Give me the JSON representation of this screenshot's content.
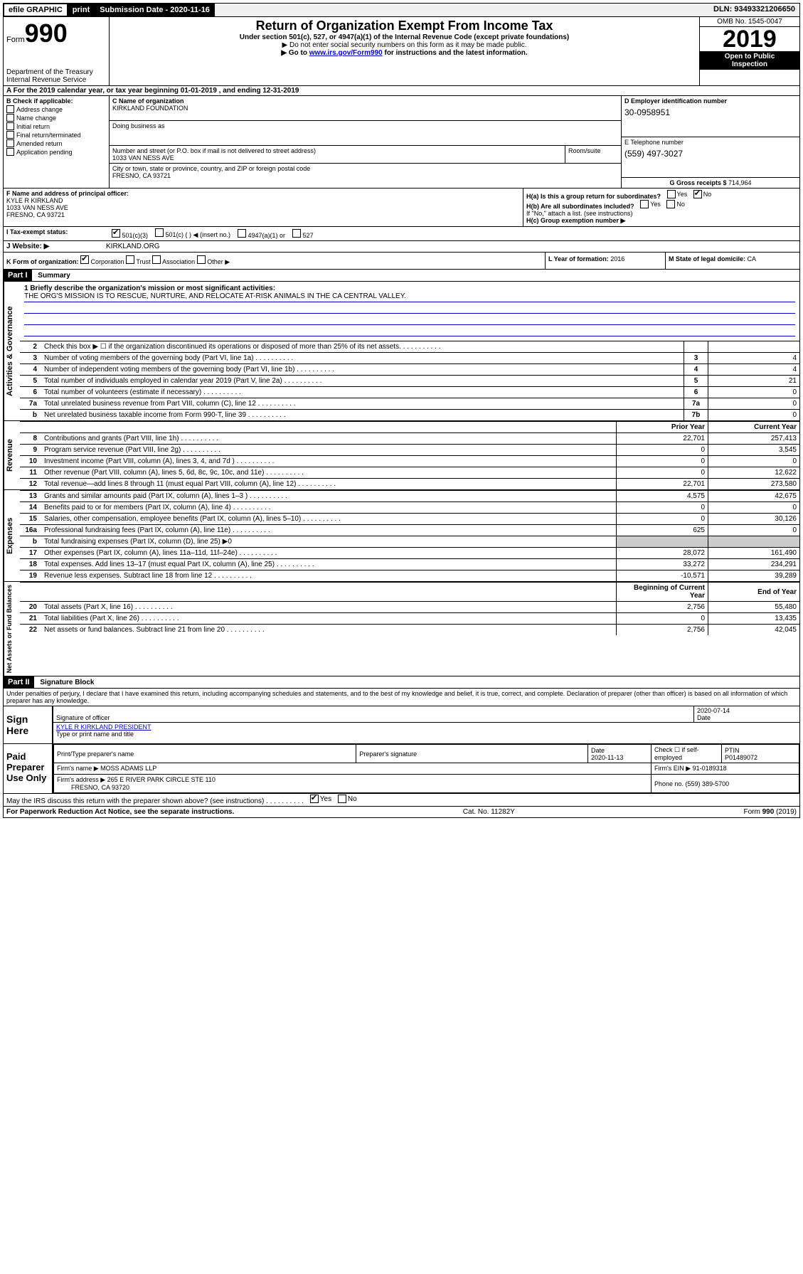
{
  "topbar": {
    "efile": "efile GRAPHIC",
    "print": "print",
    "subdate_label": "Submission Date - 2020-11-16",
    "dln": "DLN: 93493321206650"
  },
  "header": {
    "form_prefix": "Form",
    "form_number": "990",
    "dept": "Department of the Treasury",
    "irs": "Internal Revenue Service",
    "title": "Return of Organization Exempt From Income Tax",
    "sub1": "Under section 501(c), 527, or 4947(a)(1) of the Internal Revenue Code (except private foundations)",
    "sub2": "▶ Do not enter social security numbers on this form as it may be made public.",
    "sub3_prefix": "▶ Go to ",
    "sub3_link": "www.irs.gov/Form990",
    "sub3_suffix": " for instructions and the latest information.",
    "omb": "OMB No. 1545-0047",
    "year": "2019",
    "open": "Open to Public",
    "inspection": "Inspection"
  },
  "period": {
    "label_a": "A For the 2019 calendar year, or tax year beginning ",
    "start": "01-01-2019",
    "mid": " , and ending ",
    "end": "12-31-2019"
  },
  "checks": {
    "title": "B Check if applicable:",
    "addr": "Address change",
    "name": "Name change",
    "initial": "Initial return",
    "final": "Final return/terminated",
    "amended": "Amended return",
    "app": "Application pending"
  },
  "org": {
    "c_label": "C Name of organization",
    "c_val": "KIRKLAND FOUNDATION",
    "dba": "Doing business as",
    "addr_label": "Number and street (or P.O. box if mail is not delivered to street address)",
    "addr_val": "1033 VAN NESS AVE",
    "room": "Room/suite",
    "city_label": "City or town, state or province, country, and ZIP or foreign postal code",
    "city_val": "FRESNO, CA  93721"
  },
  "right": {
    "d_label": "D Employer identification number",
    "d_val": "30-0958951",
    "e_label": "E Telephone number",
    "e_val": "(559) 497-3027",
    "g_label": "G Gross receipts $ ",
    "g_val": "714,964"
  },
  "fbox": {
    "label": "F  Name and address of principal officer:",
    "name": "KYLE R KIRKLAND",
    "addr": "1033 VAN NESS AVE",
    "city": "FRESNO, CA  93721"
  },
  "hbox": {
    "h_a": "H(a)  Is this a group return for subordinates?",
    "h_b": "H(b)  Are all subordinates included?",
    "h_note": "If \"No,\" attach a list. (see instructions)",
    "h_c": "H(c)  Group exemption number ▶",
    "yes": "Yes",
    "no": "No"
  },
  "tax": {
    "label": "I   Tax-exempt status:",
    "s1": "501(c)(3)",
    "s2": "501(c) (  ) ◀ (insert no.)",
    "s3": "4947(a)(1) or",
    "s4": "527"
  },
  "web": {
    "label": "J   Website: ▶",
    "val": "KIRKLAND.ORG"
  },
  "k": {
    "label": "K Form of organization:",
    "corp": "Corporation",
    "trust": "Trust",
    "assoc": "Association",
    "other": "Other ▶",
    "l_label": "L Year of formation: ",
    "l_val": "2016",
    "m_label": "M State of legal domicile: ",
    "m_val": "CA"
  },
  "part1": {
    "hdr": "Part I",
    "title": "Summary"
  },
  "mission": {
    "line1_label": "1  Briefly describe the organization's mission or most significant activities:",
    "line1_val": "THE ORG'S MISSION IS TO RESCUE, NURTURE, AND RELOCATE AT-RISK ANIMALS IN THE CA CENTRAL VALLEY."
  },
  "gov_rows": [
    {
      "n": "2",
      "desc": "Check this box ▶ ☐  if the organization discontinued its operations or disposed of more than 25% of its net assets.",
      "num": "",
      "val": ""
    },
    {
      "n": "3",
      "desc": "Number of voting members of the governing body (Part VI, line 1a)",
      "num": "3",
      "val": "4"
    },
    {
      "n": "4",
      "desc": "Number of independent voting members of the governing body (Part VI, line 1b)",
      "num": "4",
      "val": "4"
    },
    {
      "n": "5",
      "desc": "Total number of individuals employed in calendar year 2019 (Part V, line 2a)",
      "num": "5",
      "val": "21"
    },
    {
      "n": "6",
      "desc": "Total number of volunteers (estimate if necessary)",
      "num": "6",
      "val": "0"
    },
    {
      "n": "7a",
      "desc": "Total unrelated business revenue from Part VIII, column (C), line 12",
      "num": "7a",
      "val": "0"
    },
    {
      "n": "b",
      "desc": "Net unrelated business taxable income from Form 990-T, line 39",
      "num": "7b",
      "val": "0"
    }
  ],
  "rev_header": {
    "prior": "Prior Year",
    "current": "Current Year"
  },
  "rev_rows": [
    {
      "n": "8",
      "desc": "Contributions and grants (Part VIII, line 1h)",
      "p": "22,701",
      "c": "257,413"
    },
    {
      "n": "9",
      "desc": "Program service revenue (Part VIII, line 2g)",
      "p": "0",
      "c": "3,545"
    },
    {
      "n": "10",
      "desc": "Investment income (Part VIII, column (A), lines 3, 4, and 7d )",
      "p": "0",
      "c": "0"
    },
    {
      "n": "11",
      "desc": "Other revenue (Part VIII, column (A), lines 5, 6d, 8c, 9c, 10c, and 11e)",
      "p": "0",
      "c": "12,622"
    },
    {
      "n": "12",
      "desc": "Total revenue—add lines 8 through 11 (must equal Part VIII, column (A), line 12)",
      "p": "22,701",
      "c": "273,580"
    }
  ],
  "exp_rows": [
    {
      "n": "13",
      "desc": "Grants and similar amounts paid (Part IX, column (A), lines 1–3 )",
      "p": "4,575",
      "c": "42,675"
    },
    {
      "n": "14",
      "desc": "Benefits paid to or for members (Part IX, column (A), line 4)",
      "p": "0",
      "c": "0"
    },
    {
      "n": "15",
      "desc": "Salaries, other compensation, employee benefits (Part IX, column (A), lines 5–10)",
      "p": "0",
      "c": "30,126"
    },
    {
      "n": "16a",
      "desc": "Professional fundraising fees (Part IX, column (A), line 11e)",
      "p": "625",
      "c": "0"
    },
    {
      "n": "b",
      "desc": "Total fundraising expenses (Part IX, column (D), line 25) ▶0",
      "p": "",
      "c": ""
    },
    {
      "n": "17",
      "desc": "Other expenses (Part IX, column (A), lines 11a–11d, 11f–24e)",
      "p": "28,072",
      "c": "161,490"
    },
    {
      "n": "18",
      "desc": "Total expenses. Add lines 13–17 (must equal Part IX, column (A), line 25)",
      "p": "33,272",
      "c": "234,291"
    },
    {
      "n": "19",
      "desc": "Revenue less expenses. Subtract line 18 from line 12",
      "p": "-10,571",
      "c": "39,289"
    }
  ],
  "net_header": {
    "begin": "Beginning of Current Year",
    "end": "End of Year"
  },
  "net_rows": [
    {
      "n": "20",
      "desc": "Total assets (Part X, line 16)",
      "p": "2,756",
      "c": "55,480"
    },
    {
      "n": "21",
      "desc": "Total liabilities (Part X, line 26)",
      "p": "0",
      "c": "13,435"
    },
    {
      "n": "22",
      "desc": "Net assets or fund balances. Subtract line 21 from line 20",
      "p": "2,756",
      "c": "42,045"
    }
  ],
  "part2": {
    "hdr": "Part II",
    "title": "Signature Block"
  },
  "sig": {
    "penalty": "Under penalties of perjury, I declare that I have examined this return, including accompanying schedules and statements, and to the best of my knowledge and belief, it is true, correct, and complete. Declaration of preparer (other than officer) is based on all information of which preparer has any knowledge.",
    "sign_here": "Sign Here",
    "sig_officer": "Signature of officer",
    "date1": "2020-07-14",
    "date_label": "Date",
    "name": "KYLE R KIRKLAND  PRESIDENT",
    "name_label": "Type or print name and title"
  },
  "paid": {
    "label": "Paid Preparer Use Only",
    "col1": "Print/Type preparer's name",
    "col2": "Preparer's signature",
    "col3_label": "Date",
    "col3_val": "2020-11-13",
    "col4_label": "Check ☐ if self-employed",
    "col5_label": "PTIN",
    "col5_val": "P01489072",
    "firm_label": "Firm's name    ▶",
    "firm_val": "MOSS ADAMS LLP",
    "ein_label": "Firm's EIN ▶ ",
    "ein_val": "91-0189318",
    "addr_label": "Firm's address ▶",
    "addr_val": "265 E RIVER PARK CIRCLE STE 110",
    "addr_val2": "FRESNO, CA  93720",
    "phone_label": "Phone no. ",
    "phone_val": "(559) 389-5700"
  },
  "discuss": {
    "text": "May the IRS discuss this return with the preparer shown above? (see instructions)",
    "yes": "Yes",
    "no": "No"
  },
  "footer": {
    "left": "For Paperwork Reduction Act Notice, see the separate instructions.",
    "mid": "Cat. No. 11282Y",
    "right": "Form 990 (2019)"
  },
  "sidelabels": {
    "gov": "Activities & Governance",
    "rev": "Revenue",
    "exp": "Expenses",
    "net": "Net Assets or Fund Balances"
  }
}
